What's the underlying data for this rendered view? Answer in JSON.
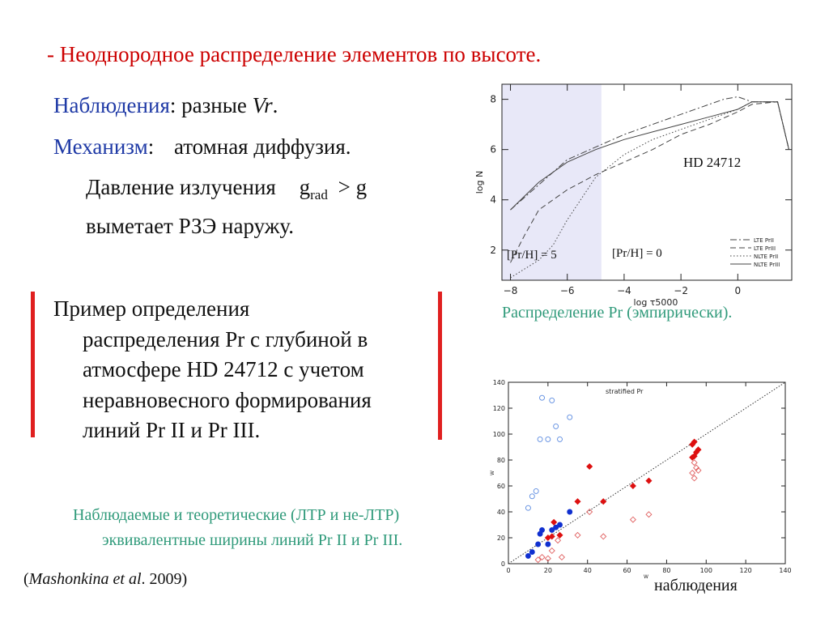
{
  "title": "- Неоднородное распределение элементов по высоте.",
  "observations": {
    "label": "Наблюдения",
    "sep": ":",
    "text": "разные",
    "var": "Vr",
    "end": "."
  },
  "mechanism": {
    "label": "Механизм",
    "sep": ":",
    "text": "атомная диффузия."
  },
  "radiation": {
    "text": "Давление излучения",
    "g": "g",
    "sub": "rad",
    "op": ">",
    "g2": "g"
  },
  "sweeps": "выметает РЗЭ наружу.",
  "example_lines": [
    "Пример определения",
    "распределения Pr с глубиной в",
    "атмосфере HD 24712 с учетом",
    "неравновесного формирования",
    "линий Pr II и Pr III."
  ],
  "caption_top": "Распределение Pr  (эмпирически).",
  "caption_bottom_1": "Наблюдаемые и теоретические (ЛТР и не-ЛТР)",
  "caption_bottom_2": "эквивалентные ширины линий Pr II и Pr III.",
  "reference": {
    "open": "(",
    "authors": "Mashonkina et al",
    "year": ". 2009)"
  },
  "obs_label": "наблюдения",
  "chart_data": [
    {
      "type": "line",
      "star_label": "HD 24712",
      "xlabel": "log τ5000",
      "ylabel": "log N",
      "xlim": [
        -8.3,
        1.9
      ],
      "ylim": [
        0.8,
        8.6
      ],
      "xticks": [
        -8,
        -6,
        -4,
        -2,
        0
      ],
      "yticks": [
        2,
        4,
        6,
        8
      ],
      "shaded_region": [
        -8.3,
        -4.8
      ],
      "annotations": [
        "[Pr/H] = 5",
        "[Pr/H] = 0"
      ],
      "series": [
        {
          "name": "LTE PrII",
          "style": "dashdot",
          "x": [
            -8,
            -7,
            -6,
            -5,
            -4,
            -3,
            -2,
            -1,
            -0.5,
            0,
            0.5,
            1.4,
            1.8
          ],
          "y": [
            3.6,
            4.6,
            5.6,
            6.1,
            6.6,
            7.0,
            7.4,
            7.8,
            8.0,
            8.1,
            7.9,
            7.9,
            6.0
          ]
        },
        {
          "name": "LTE PrIII",
          "style": "dashed",
          "x": [
            -8,
            -7.5,
            -7,
            -6,
            -5,
            -4,
            -3,
            -2,
            -1,
            0,
            0.5,
            1.4,
            1.8
          ],
          "y": [
            1.5,
            2.6,
            3.6,
            4.4,
            5.0,
            5.5,
            6.0,
            6.6,
            7.0,
            7.5,
            7.8,
            7.9,
            6.0
          ]
        },
        {
          "name": "NLTE PrII",
          "style": "dotted",
          "x": [
            -8,
            -7,
            -6.5,
            -6,
            -5,
            -4,
            -3,
            -2,
            -1,
            0,
            0.5,
            1.4,
            1.8
          ],
          "y": [
            0.9,
            1.6,
            2.2,
            3.2,
            4.9,
            5.8,
            6.4,
            6.8,
            7.2,
            7.6,
            7.9,
            7.9,
            6.0
          ]
        },
        {
          "name": "NLTE PrIII",
          "style": "solid",
          "x": [
            -8,
            -7,
            -6,
            -5,
            -4,
            -3,
            -2,
            -1,
            0,
            0.5,
            1.4,
            1.8
          ],
          "y": [
            3.6,
            4.7,
            5.5,
            6.0,
            6.4,
            6.7,
            7.0,
            7.3,
            7.6,
            7.9,
            7.9,
            6.0
          ]
        }
      ]
    },
    {
      "type": "scatter",
      "title": "stratified Pr",
      "xlabel": "W",
      "ylabel": "W",
      "xlim": [
        0,
        140
      ],
      "ylim": [
        0,
        140
      ],
      "xticks": [
        0,
        20,
        40,
        60,
        80,
        100,
        120,
        140
      ],
      "yticks": [
        0,
        20,
        40,
        60,
        80,
        100,
        120,
        140
      ],
      "diagonal": true,
      "series": [
        {
          "name": "PrII filled",
          "marker": "circle-filled",
          "color": "#1030d0",
          "x": [
            10,
            12,
            15,
            16,
            17,
            20,
            22,
            24,
            26,
            31
          ],
          "y": [
            6,
            9,
            15,
            23,
            26,
            15,
            26,
            28,
            30,
            40
          ]
        },
        {
          "name": "PrII open",
          "marker": "circle-open",
          "color": "#5a8ae0",
          "x": [
            10,
            12,
            14,
            16,
            17,
            20,
            22,
            24,
            26,
            31
          ],
          "y": [
            43,
            52,
            56,
            96,
            128,
            96,
            126,
            106,
            96,
            113
          ]
        },
        {
          "name": "PrIII filled",
          "marker": "diamond-filled",
          "color": "#dd1010",
          "x": [
            20,
            22,
            23,
            26,
            35,
            41,
            48,
            63,
            71,
            93,
            94,
            95,
            96,
            94,
            93
          ],
          "y": [
            20,
            21,
            32,
            22,
            48,
            75,
            48,
            60,
            64,
            92,
            94,
            86,
            88,
            83,
            82
          ]
        },
        {
          "name": "PrIII open",
          "marker": "diamond-open",
          "color": "#e06060",
          "x": [
            15,
            17,
            20,
            22,
            25,
            27,
            35,
            41,
            48,
            63,
            71,
            93,
            94,
            95,
            96,
            94
          ],
          "y": [
            3,
            5,
            4,
            10,
            18,
            5,
            22,
            40,
            21,
            34,
            38,
            70,
            66,
            74,
            72,
            78
          ]
        }
      ]
    }
  ]
}
